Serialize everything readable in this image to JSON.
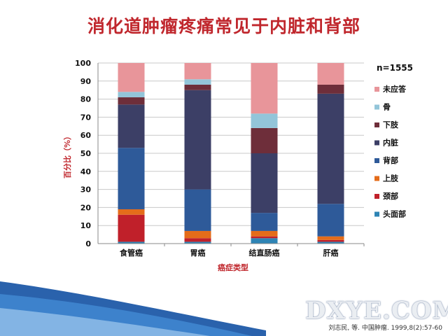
{
  "title": "消化道肿瘤疼痛常见于内脏和背部",
  "watermark": "DXYE.COM",
  "source": "刘志民, 等. 中国肿瘤. 1999,8(2):57-60",
  "chart_data": {
    "type": "bar",
    "stacked": true,
    "categories": [
      "食管癌",
      "胃癌",
      "结直肠癌",
      "肝癌"
    ],
    "xlabel": "癌症类型",
    "ylabel": "百分比（%）",
    "ylim": [
      0,
      100
    ],
    "yticks": [
      0,
      10,
      20,
      30,
      40,
      50,
      60,
      70,
      80,
      90,
      100
    ],
    "grid": true,
    "legend_position": "right",
    "annotation": "n=1555",
    "series": [
      {
        "name": "头面部",
        "color": "#2e84b5",
        "values": [
          1,
          1,
          3,
          1
        ]
      },
      {
        "name": "颈部",
        "color": "#c0202a",
        "values": [
          15,
          2,
          1,
          1
        ]
      },
      {
        "name": "上肢",
        "color": "#e46c1a",
        "values": [
          3,
          4,
          3,
          2
        ]
      },
      {
        "name": "背部",
        "color": "#2e5a99",
        "values": [
          34,
          23,
          10,
          18
        ]
      },
      {
        "name": "内脏",
        "color": "#3c3f66",
        "values": [
          24,
          55,
          33,
          61
        ]
      },
      {
        "name": "下肢",
        "color": "#6e2e3a",
        "values": [
          4,
          3,
          14,
          5
        ]
      },
      {
        "name": "骨",
        "color": "#93c5d9",
        "values": [
          3,
          3,
          8,
          0
        ]
      },
      {
        "name": "未应答",
        "color": "#e8959a",
        "values": [
          16,
          9,
          28,
          12
        ]
      }
    ]
  }
}
